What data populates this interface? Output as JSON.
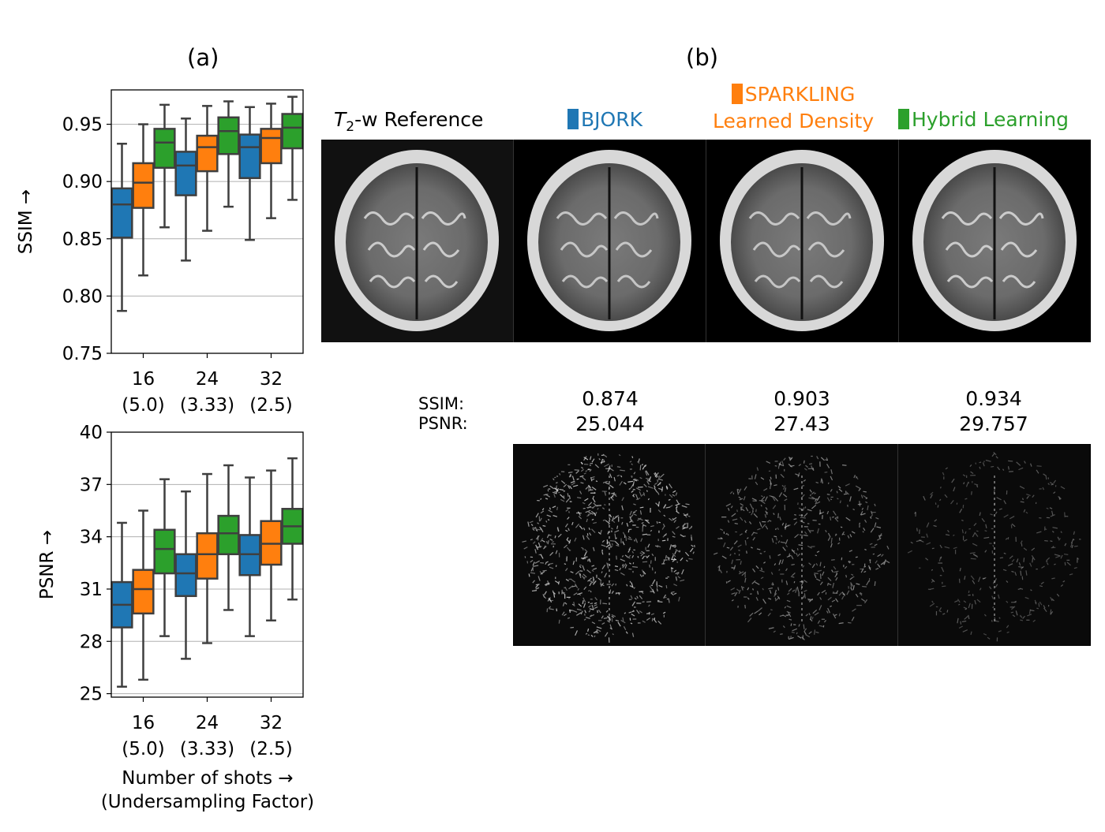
{
  "panel_a_title": "(a)",
  "panel_b_title": "(b)",
  "methods": [
    {
      "name": "BJORK",
      "color": "#1f77b4"
    },
    {
      "name": "SPARKLING Learned Density",
      "name_line1": "SPARKLING",
      "name_line2": "Learned Density",
      "color": "#ff7f0e"
    },
    {
      "name": "Hybrid Learning",
      "color": "#2ca02c"
    }
  ],
  "reference": {
    "prefix": "T",
    "sub": "2",
    "suffix": "-w Reference"
  },
  "metrics": {
    "ssim_label": "SSIM:",
    "psnr_label": "PSNR:",
    "values": [
      {
        "ssim": "0.874",
        "psnr": "25.044"
      },
      {
        "ssim": "0.903",
        "psnr": "27.43"
      },
      {
        "ssim": "0.934",
        "psnr": "29.757"
      }
    ]
  },
  "xlabel_line1": "Number of shots →",
  "xlabel_line2": "(Undersampling Factor)",
  "chart_data": [
    {
      "type": "box",
      "ylabel": "SSIM →",
      "ylim": [
        0.75,
        0.98
      ],
      "yticks": [
        0.75,
        0.8,
        0.85,
        0.9,
        0.95
      ],
      "ytick_labels": [
        "0.75",
        "0.80",
        "0.85",
        "0.90",
        "0.95"
      ],
      "grid": true,
      "categories": [
        "16",
        "24",
        "32"
      ],
      "category_sub": [
        "(5.0)",
        "(3.33)",
        "(2.5)"
      ],
      "series": [
        {
          "name": "BJORK",
          "boxes": [
            {
              "whislo": 0.787,
              "q1": 0.851,
              "med": 0.88,
              "q3": 0.894,
              "whishi": 0.933
            },
            {
              "whislo": 0.831,
              "q1": 0.888,
              "med": 0.914,
              "q3": 0.926,
              "whishi": 0.955
            },
            {
              "whislo": 0.849,
              "q1": 0.903,
              "med": 0.93,
              "q3": 0.941,
              "whishi": 0.965
            }
          ]
        },
        {
          "name": "SPARKLING Learned Density",
          "boxes": [
            {
              "whislo": 0.818,
              "q1": 0.877,
              "med": 0.899,
              "q3": 0.916,
              "whishi": 0.95
            },
            {
              "whislo": 0.857,
              "q1": 0.909,
              "med": 0.93,
              "q3": 0.94,
              "whishi": 0.966
            },
            {
              "whislo": 0.868,
              "q1": 0.916,
              "med": 0.938,
              "q3": 0.946,
              "whishi": 0.968
            }
          ]
        },
        {
          "name": "Hybrid Learning",
          "boxes": [
            {
              "whislo": 0.86,
              "q1": 0.912,
              "med": 0.934,
              "q3": 0.946,
              "whishi": 0.967
            },
            {
              "whislo": 0.878,
              "q1": 0.924,
              "med": 0.944,
              "q3": 0.956,
              "whishi": 0.97
            },
            {
              "whislo": 0.884,
              "q1": 0.929,
              "med": 0.947,
              "q3": 0.959,
              "whishi": 0.974
            }
          ]
        }
      ]
    },
    {
      "type": "box",
      "ylabel": "PSNR →",
      "ylim": [
        24.8,
        40
      ],
      "yticks": [
        25,
        28,
        31,
        34,
        37,
        40
      ],
      "ytick_labels": [
        "25",
        "28",
        "31",
        "34",
        "37",
        "40"
      ],
      "grid": true,
      "categories": [
        "16",
        "24",
        "32"
      ],
      "category_sub": [
        "(5.0)",
        "(3.33)",
        "(2.5)"
      ],
      "series": [
        {
          "name": "BJORK",
          "boxes": [
            {
              "whislo": 25.4,
              "q1": 28.8,
              "med": 30.1,
              "q3": 31.4,
              "whishi": 34.8
            },
            {
              "whislo": 27.0,
              "q1": 30.6,
              "med": 31.9,
              "q3": 33.0,
              "whishi": 36.6
            },
            {
              "whislo": 28.3,
              "q1": 31.8,
              "med": 33.0,
              "q3": 34.1,
              "whishi": 37.4
            }
          ]
        },
        {
          "name": "SPARKLING Learned Density",
          "boxes": [
            {
              "whislo": 25.8,
              "q1": 29.6,
              "med": 31.0,
              "q3": 32.1,
              "whishi": 35.5
            },
            {
              "whislo": 27.9,
              "q1": 31.6,
              "med": 33.0,
              "q3": 34.2,
              "whishi": 37.6
            },
            {
              "whislo": 29.2,
              "q1": 32.4,
              "med": 33.6,
              "q3": 34.9,
              "whishi": 37.8
            }
          ]
        },
        {
          "name": "Hybrid Learning",
          "boxes": [
            {
              "whislo": 28.3,
              "q1": 31.9,
              "med": 33.3,
              "q3": 34.4,
              "whishi": 37.3
            },
            {
              "whislo": 29.8,
              "q1": 33.0,
              "med": 34.2,
              "q3": 35.2,
              "whishi": 38.1
            },
            {
              "whislo": 30.4,
              "q1": 33.6,
              "med": 34.6,
              "q3": 35.6,
              "whishi": 38.5
            }
          ]
        }
      ]
    }
  ]
}
